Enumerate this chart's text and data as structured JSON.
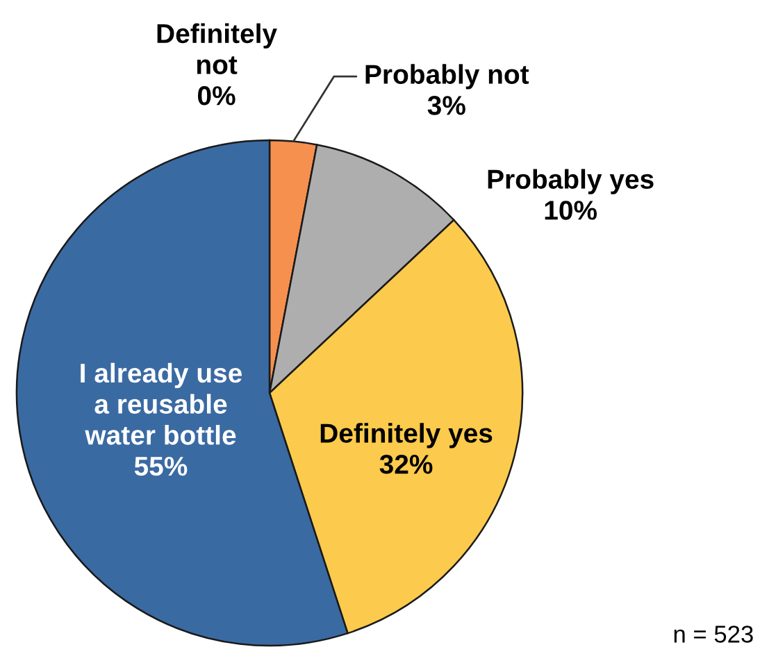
{
  "chart_data": {
    "type": "pie",
    "categories": [
      "Definitely not",
      "Probably not",
      "Probably yes",
      "Definitely yes",
      "I already use a reusable water bottle"
    ],
    "values": [
      0,
      3,
      10,
      32,
      55
    ],
    "value_labels": [
      "0%",
      "3%",
      "10%",
      "32%",
      "55%"
    ],
    "colors": [
      "#c0504d",
      "#f6904f",
      "#aeaeae",
      "#fcca4c",
      "#3a6aa2"
    ],
    "annotations": [
      "n = 523"
    ]
  }
}
